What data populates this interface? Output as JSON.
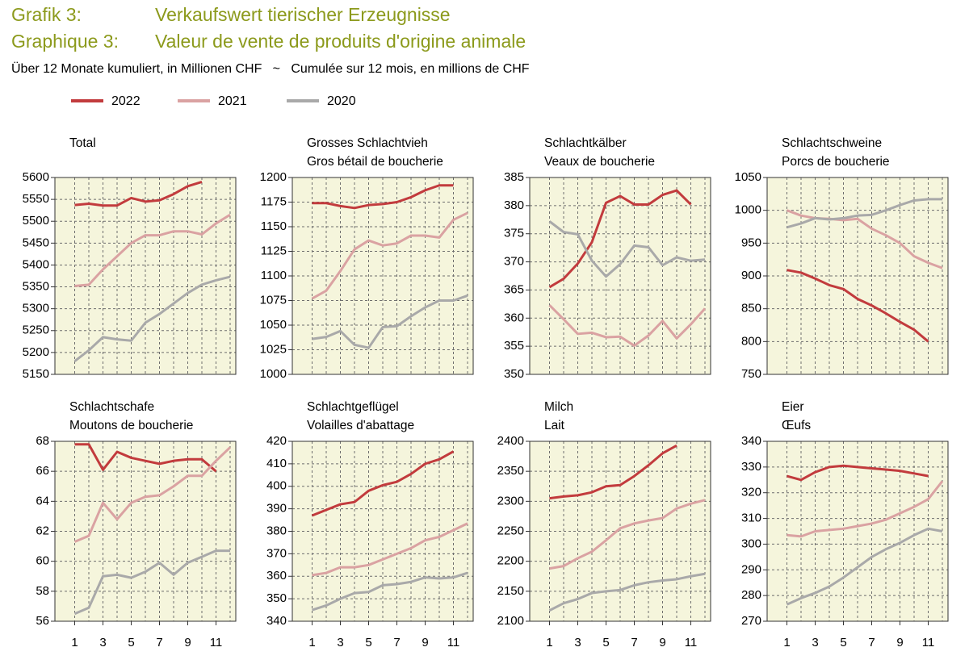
{
  "header": {
    "label_de": "Grafik 3:",
    "title_de": "Verkaufswert tierischer Erzeugnisse",
    "label_fr": "Graphique 3:",
    "title_fr": "Valeur de vente de produits d'origine animale",
    "subtitle": "Über 12 Monate kumuliert, in Millionen CHF   ~   Cumulée sur 12 mois, en millions de CHF"
  },
  "chart_data": [
    {
      "type": "line",
      "title": "Total",
      "x": [
        1,
        2,
        3,
        4,
        5,
        6,
        7,
        8,
        9,
        10,
        11,
        12
      ],
      "xlim": [
        -0.4,
        12.4
      ],
      "ylim": [
        5150,
        5600
      ],
      "yticks": [
        5150,
        5200,
        5250,
        5300,
        5350,
        5400,
        5450,
        5500,
        5550,
        5600
      ],
      "grid": true,
      "series": [
        {
          "name": "2022",
          "color": "#c23b3d",
          "values": [
            5537,
            5540,
            5536,
            5536,
            5553,
            5545,
            5548,
            5562,
            5580,
            5590,
            null,
            null
          ]
        },
        {
          "name": "2021",
          "color": "#daa2a2",
          "values": [
            5352,
            5355,
            5390,
            5420,
            5450,
            5468,
            5468,
            5477,
            5477,
            5470,
            5495,
            5515
          ]
        },
        {
          "name": "2020",
          "color": "#a9a9a9",
          "values": [
            5180,
            5205,
            5235,
            5230,
            5227,
            5268,
            5288,
            5312,
            5336,
            5355,
            5365,
            5373
          ]
        }
      ]
    },
    {
      "type": "line",
      "title": "Grosses Schlachtvieh",
      "subtitle": "Gros bétail de boucherie",
      "x": [
        1,
        2,
        3,
        4,
        5,
        6,
        7,
        8,
        9,
        10,
        11,
        12
      ],
      "xlim": [
        -0.4,
        12.4
      ],
      "ylim": [
        1000,
        1200
      ],
      "yticks": [
        1000,
        1025,
        1050,
        1075,
        1100,
        1125,
        1150,
        1175,
        1200
      ],
      "grid": true,
      "series": [
        {
          "name": "2022",
          "color": "#c23b3d",
          "values": [
            1174,
            1174,
            1171,
            1169,
            1172,
            1173,
            1175,
            1180,
            1187,
            1192,
            1192,
            null
          ]
        },
        {
          "name": "2021",
          "color": "#daa2a2",
          "values": [
            1077,
            1085,
            1105,
            1127,
            1136,
            1131,
            1133,
            1141,
            1141,
            1139,
            1157,
            1164
          ]
        },
        {
          "name": "2020",
          "color": "#a9a9a9",
          "values": [
            1036,
            1038,
            1044,
            1030,
            1027,
            1048,
            1049,
            1059,
            1068,
            1075,
            1075,
            1080
          ]
        }
      ]
    },
    {
      "type": "line",
      "title": "Schlachtkälber",
      "subtitle": "Veaux de boucherie",
      "x": [
        1,
        2,
        3,
        4,
        5,
        6,
        7,
        8,
        9,
        10,
        11,
        12
      ],
      "xlim": [
        -0.4,
        12.4
      ],
      "ylim": [
        350,
        385
      ],
      "yticks": [
        350,
        355,
        360,
        365,
        370,
        375,
        380,
        385
      ],
      "grid": true,
      "series": [
        {
          "name": "2022",
          "color": "#c23b3d",
          "values": [
            365.5,
            367,
            369.7,
            373.5,
            380.5,
            381.7,
            380.2,
            380.2,
            381.9,
            382.7,
            380.2,
            null
          ]
        },
        {
          "name": "2021",
          "color": "#daa2a2",
          "values": [
            362.3,
            359.8,
            357.2,
            357.4,
            356.6,
            356.7,
            355.1,
            356.9,
            359.5,
            356.4,
            358.9,
            361.7
          ]
        },
        {
          "name": "2020",
          "color": "#a9a9a9",
          "values": [
            377.2,
            375.3,
            374.9,
            370.2,
            367.4,
            369.6,
            372.9,
            372.6,
            369.4,
            370.8,
            370.2,
            370.4
          ]
        }
      ]
    },
    {
      "type": "line",
      "title": "Schlachtschweine",
      "subtitle": "Porcs de boucherie",
      "x": [
        1,
        2,
        3,
        4,
        5,
        6,
        7,
        8,
        9,
        10,
        11,
        12
      ],
      "xlim": [
        -0.4,
        12.4
      ],
      "ylim": [
        750,
        1050
      ],
      "yticks": [
        750,
        800,
        850,
        900,
        950,
        1000,
        1050
      ],
      "grid": true,
      "series": [
        {
          "name": "2022",
          "color": "#c23b3d",
          "values": [
            909,
            905,
            896,
            886,
            880,
            865,
            855,
            843,
            830,
            818,
            800,
            null
          ]
        },
        {
          "name": "2021",
          "color": "#daa2a2",
          "values": [
            1000,
            992,
            988,
            987,
            985,
            987,
            972,
            962,
            950,
            930,
            920,
            912
          ]
        },
        {
          "name": "2020",
          "color": "#a9a9a9",
          "values": [
            974,
            980,
            988,
            986,
            988,
            992,
            993,
            1000,
            1008,
            1015,
            1017,
            1017
          ]
        }
      ]
    },
    {
      "type": "line",
      "title": "Schlachtschafe",
      "subtitle": "Moutons de boucherie",
      "x": [
        1,
        2,
        3,
        4,
        5,
        6,
        7,
        8,
        9,
        10,
        11,
        12
      ],
      "xlim": [
        -0.4,
        12.4
      ],
      "xticks": [
        1,
        3,
        5,
        7,
        9,
        11
      ],
      "ylim": [
        56,
        68
      ],
      "yticks": [
        56,
        58,
        60,
        62,
        64,
        66,
        68
      ],
      "grid": true,
      "series": [
        {
          "name": "2022",
          "color": "#c23b3d",
          "values": [
            67.8,
            67.8,
            66.1,
            67.3,
            66.9,
            66.7,
            66.5,
            66.7,
            66.8,
            66.8,
            66.0,
            null
          ]
        },
        {
          "name": "2021",
          "color": "#daa2a2",
          "values": [
            61.3,
            61.7,
            63.9,
            62.8,
            63.9,
            64.3,
            64.4,
            65.0,
            65.7,
            65.7,
            66.7,
            67.6
          ]
        },
        {
          "name": "2020",
          "color": "#a9a9a9",
          "values": [
            56.5,
            56.9,
            59.0,
            59.1,
            58.9,
            59.3,
            59.9,
            59.1,
            59.9,
            60.3,
            60.7,
            60.7
          ]
        }
      ]
    },
    {
      "type": "line",
      "title": "Schlachtgeflügel",
      "subtitle": "Volailles d'abattage",
      "x": [
        1,
        2,
        3,
        4,
        5,
        6,
        7,
        8,
        9,
        10,
        11,
        12
      ],
      "xlim": [
        -0.4,
        12.4
      ],
      "xticks": [
        1,
        3,
        5,
        7,
        9,
        11
      ],
      "ylim": [
        340,
        420
      ],
      "yticks": [
        340,
        350,
        360,
        370,
        380,
        390,
        400,
        410,
        420
      ],
      "grid": true,
      "series": [
        {
          "name": "2022",
          "color": "#c23b3d",
          "values": [
            387,
            389.5,
            392,
            393,
            398,
            400.5,
            402,
            405.5,
            410,
            412,
            415.5,
            null
          ]
        },
        {
          "name": "2021",
          "color": "#daa2a2",
          "values": [
            360.5,
            361.5,
            364,
            364,
            365,
            367.5,
            370,
            372.5,
            376,
            377.5,
            380.5,
            383.5
          ]
        },
        {
          "name": "2020",
          "color": "#a9a9a9",
          "values": [
            345,
            347,
            350,
            352.5,
            353,
            356,
            356.5,
            357.5,
            359.5,
            359,
            359.5,
            361.5
          ]
        }
      ]
    },
    {
      "type": "line",
      "title": "Milch",
      "subtitle": "Lait",
      "x": [
        1,
        2,
        3,
        4,
        5,
        6,
        7,
        8,
        9,
        10,
        11,
        12
      ],
      "xlim": [
        -0.4,
        12.4
      ],
      "xticks": [
        1,
        3,
        5,
        7,
        9,
        11
      ],
      "ylim": [
        2100,
        2400
      ],
      "yticks": [
        2100,
        2150,
        2200,
        2250,
        2300,
        2350,
        2400
      ],
      "grid": true,
      "series": [
        {
          "name": "2022",
          "color": "#c23b3d",
          "values": [
            2305,
            2308,
            2310,
            2315,
            2325,
            2327,
            2342,
            2360,
            2380,
            2393,
            null,
            null
          ]
        },
        {
          "name": "2021",
          "color": "#daa2a2",
          "values": [
            2188,
            2192,
            2205,
            2216,
            2235,
            2255,
            2263,
            2268,
            2272,
            2288,
            2296,
            2302
          ]
        },
        {
          "name": "2020",
          "color": "#a9a9a9",
          "values": [
            2118,
            2130,
            2137,
            2147,
            2150,
            2152,
            2160,
            2165,
            2168,
            2170,
            2175,
            2179
          ]
        }
      ]
    },
    {
      "type": "line",
      "title": "Eier",
      "subtitle": "Œufs",
      "x": [
        1,
        2,
        3,
        4,
        5,
        6,
        7,
        8,
        9,
        10,
        11,
        12
      ],
      "xlim": [
        -0.4,
        12.4
      ],
      "xticks": [
        1,
        3,
        5,
        7,
        9,
        11
      ],
      "ylim": [
        270,
        340
      ],
      "yticks": [
        270,
        280,
        290,
        300,
        310,
        320,
        330,
        340
      ],
      "grid": true,
      "series": [
        {
          "name": "2022",
          "color": "#c23b3d",
          "values": [
            326.5,
            325,
            328,
            330,
            330.5,
            330,
            329.5,
            329,
            328.5,
            327.5,
            326.5,
            null
          ]
        },
        {
          "name": "2021",
          "color": "#daa2a2",
          "values": [
            303.5,
            303,
            305,
            305.5,
            306,
            307,
            308,
            309.5,
            312,
            314.5,
            317.5,
            324.5
          ]
        },
        {
          "name": "2020",
          "color": "#a9a9a9",
          "values": [
            276.5,
            279,
            281,
            283.5,
            287,
            291,
            295,
            298,
            300.5,
            303.5,
            306,
            305
          ]
        }
      ]
    }
  ]
}
